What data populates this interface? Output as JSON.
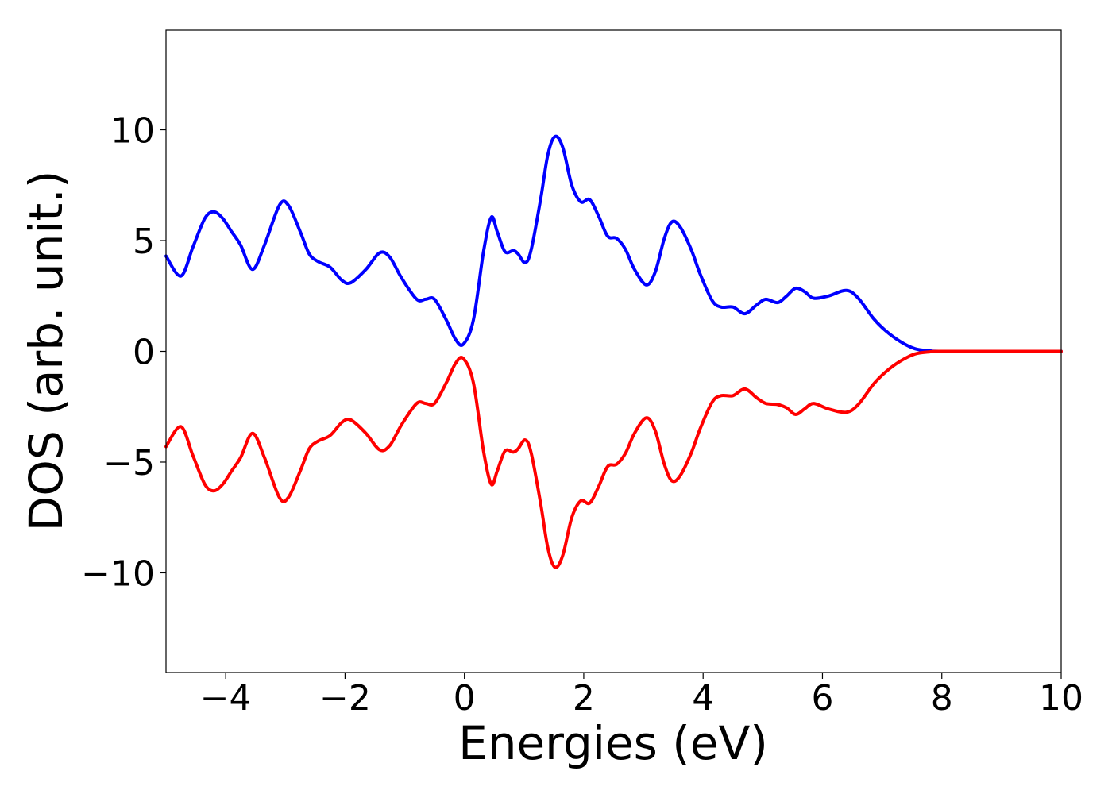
{
  "chart_data": {
    "type": "line",
    "xlabel": "Energies (eV)",
    "ylabel": "DOS (arb. unit.)",
    "xlim": [
      -5,
      10
    ],
    "ylim": [
      -14.5,
      14.5
    ],
    "xticks": [
      -4,
      -2,
      0,
      2,
      4,
      6,
      8,
      10
    ],
    "xtick_labels": [
      "−4",
      "−2",
      "0",
      "2",
      "4",
      "6",
      "8",
      "10"
    ],
    "yticks": [
      -10,
      -5,
      0,
      5,
      10
    ],
    "ytick_labels": [
      "−10",
      "−5",
      "0",
      "5",
      "10"
    ],
    "grid": false,
    "legend": "none",
    "series": [
      {
        "color": "#0000ff",
        "points": [
          [
            -5.0,
            4.3
          ],
          [
            -4.75,
            3.4
          ],
          [
            -4.55,
            4.7
          ],
          [
            -4.35,
            6.0
          ],
          [
            -4.2,
            6.3
          ],
          [
            -4.05,
            6.0
          ],
          [
            -3.9,
            5.4
          ],
          [
            -3.75,
            4.8
          ],
          [
            -3.55,
            3.7
          ],
          [
            -3.35,
            4.8
          ],
          [
            -3.1,
            6.6
          ],
          [
            -2.95,
            6.6
          ],
          [
            -2.75,
            5.4
          ],
          [
            -2.6,
            4.4
          ],
          [
            -2.45,
            4.05
          ],
          [
            -2.25,
            3.8
          ],
          [
            -2.05,
            3.2
          ],
          [
            -1.9,
            3.1
          ],
          [
            -1.65,
            3.7
          ],
          [
            -1.42,
            4.45
          ],
          [
            -1.25,
            4.25
          ],
          [
            -1.05,
            3.3
          ],
          [
            -0.8,
            2.35
          ],
          [
            -0.65,
            2.35
          ],
          [
            -0.5,
            2.35
          ],
          [
            -0.3,
            1.4
          ],
          [
            -0.15,
            0.55
          ],
          [
            -0.02,
            0.32
          ],
          [
            0.15,
            1.4
          ],
          [
            0.32,
            4.5
          ],
          [
            0.45,
            6.05
          ],
          [
            0.55,
            5.4
          ],
          [
            0.68,
            4.5
          ],
          [
            0.82,
            4.55
          ],
          [
            0.9,
            4.4
          ],
          [
            1.02,
            4.0
          ],
          [
            1.12,
            4.6
          ],
          [
            1.28,
            6.9
          ],
          [
            1.4,
            8.9
          ],
          [
            1.52,
            9.7
          ],
          [
            1.65,
            9.2
          ],
          [
            1.8,
            7.5
          ],
          [
            1.95,
            6.75
          ],
          [
            2.1,
            6.85
          ],
          [
            2.25,
            6.1
          ],
          [
            2.4,
            5.2
          ],
          [
            2.55,
            5.1
          ],
          [
            2.7,
            4.6
          ],
          [
            2.85,
            3.7
          ],
          [
            3.05,
            3.0
          ],
          [
            3.2,
            3.6
          ],
          [
            3.35,
            5.1
          ],
          [
            3.48,
            5.85
          ],
          [
            3.62,
            5.6
          ],
          [
            3.8,
            4.6
          ],
          [
            3.95,
            3.5
          ],
          [
            4.15,
            2.3
          ],
          [
            4.3,
            2.0
          ],
          [
            4.5,
            2.0
          ],
          [
            4.7,
            1.7
          ],
          [
            4.9,
            2.1
          ],
          [
            5.05,
            2.35
          ],
          [
            5.25,
            2.2
          ],
          [
            5.4,
            2.5
          ],
          [
            5.55,
            2.85
          ],
          [
            5.7,
            2.7
          ],
          [
            5.85,
            2.4
          ],
          [
            6.1,
            2.5
          ],
          [
            6.4,
            2.75
          ],
          [
            6.6,
            2.4
          ],
          [
            6.85,
            1.5
          ],
          [
            7.05,
            0.95
          ],
          [
            7.3,
            0.45
          ],
          [
            7.55,
            0.12
          ],
          [
            7.8,
            0.02
          ],
          [
            8.0,
            0.0
          ],
          [
            9.0,
            0.0
          ],
          [
            10.0,
            0.0
          ]
        ]
      },
      {
        "color": "#ff0000",
        "points": [
          [
            -5.0,
            -4.3
          ],
          [
            -4.75,
            -3.4
          ],
          [
            -4.55,
            -4.7
          ],
          [
            -4.35,
            -6.0
          ],
          [
            -4.2,
            -6.3
          ],
          [
            -4.05,
            -6.0
          ],
          [
            -3.9,
            -5.4
          ],
          [
            -3.75,
            -4.8
          ],
          [
            -3.55,
            -3.7
          ],
          [
            -3.35,
            -4.8
          ],
          [
            -3.1,
            -6.6
          ],
          [
            -2.95,
            -6.6
          ],
          [
            -2.75,
            -5.4
          ],
          [
            -2.6,
            -4.4
          ],
          [
            -2.45,
            -4.05
          ],
          [
            -2.25,
            -3.8
          ],
          [
            -2.05,
            -3.2
          ],
          [
            -1.9,
            -3.1
          ],
          [
            -1.65,
            -3.7
          ],
          [
            -1.42,
            -4.45
          ],
          [
            -1.25,
            -4.25
          ],
          [
            -1.05,
            -3.3
          ],
          [
            -0.8,
            -2.35
          ],
          [
            -0.65,
            -2.35
          ],
          [
            -0.5,
            -2.35
          ],
          [
            -0.3,
            -1.4
          ],
          [
            -0.15,
            -0.55
          ],
          [
            -0.02,
            -0.32
          ],
          [
            0.15,
            -1.4
          ],
          [
            0.32,
            -4.5
          ],
          [
            0.45,
            -6.0
          ],
          [
            0.55,
            -5.4
          ],
          [
            0.68,
            -4.5
          ],
          [
            0.82,
            -4.55
          ],
          [
            0.9,
            -4.4
          ],
          [
            1.02,
            -4.0
          ],
          [
            1.12,
            -4.6
          ],
          [
            1.28,
            -6.9
          ],
          [
            1.4,
            -8.9
          ],
          [
            1.52,
            -9.75
          ],
          [
            1.65,
            -9.2
          ],
          [
            1.8,
            -7.5
          ],
          [
            1.95,
            -6.75
          ],
          [
            2.1,
            -6.85
          ],
          [
            2.25,
            -6.1
          ],
          [
            2.4,
            -5.2
          ],
          [
            2.55,
            -5.1
          ],
          [
            2.7,
            -4.6
          ],
          [
            2.85,
            -3.7
          ],
          [
            3.05,
            -3.0
          ],
          [
            3.2,
            -3.6
          ],
          [
            3.35,
            -5.1
          ],
          [
            3.48,
            -5.85
          ],
          [
            3.62,
            -5.6
          ],
          [
            3.8,
            -4.6
          ],
          [
            3.95,
            -3.5
          ],
          [
            4.15,
            -2.3
          ],
          [
            4.3,
            -2.0
          ],
          [
            4.5,
            -2.0
          ],
          [
            4.7,
            -1.7
          ],
          [
            4.9,
            -2.1
          ],
          [
            5.05,
            -2.35
          ],
          [
            5.25,
            -2.4
          ],
          [
            5.4,
            -2.55
          ],
          [
            5.55,
            -2.85
          ],
          [
            5.7,
            -2.6
          ],
          [
            5.85,
            -2.35
          ],
          [
            6.1,
            -2.6
          ],
          [
            6.4,
            -2.75
          ],
          [
            6.6,
            -2.4
          ],
          [
            6.85,
            -1.5
          ],
          [
            7.05,
            -0.95
          ],
          [
            7.3,
            -0.45
          ],
          [
            7.55,
            -0.12
          ],
          [
            7.8,
            -0.02
          ],
          [
            8.0,
            0.0
          ],
          [
            9.0,
            0.0
          ],
          [
            10.0,
            0.0
          ]
        ]
      }
    ]
  }
}
